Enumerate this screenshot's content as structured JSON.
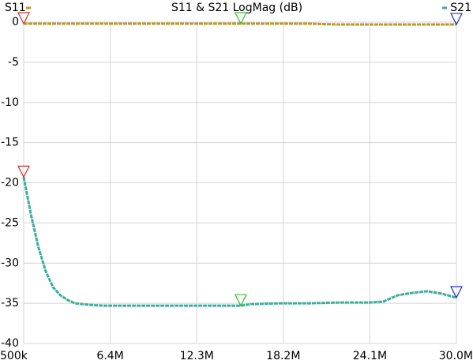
{
  "chart_data": {
    "type": "line",
    "title": "S11 & S21 LogMag (dB)",
    "x": [
      0.5,
      1,
      1.5,
      2,
      2.5,
      3,
      3.5,
      4,
      5,
      6,
      8,
      10,
      12,
      14,
      15.3,
      16,
      18,
      20,
      22,
      24,
      25,
      26,
      27,
      28,
      29,
      30
    ],
    "series": [
      {
        "name": "S11",
        "color": "#b89c2c",
        "values": [
          -0.2,
          -0.2,
          -0.2,
          -0.2,
          -0.2,
          -0.2,
          -0.2,
          -0.2,
          -0.2,
          -0.2,
          -0.2,
          -0.2,
          -0.2,
          -0.2,
          -0.2,
          -0.2,
          -0.2,
          -0.2,
          -0.3,
          -0.3,
          -0.3,
          -0.3,
          -0.3,
          -0.3,
          -0.3,
          -0.3
        ]
      },
      {
        "name": "S21",
        "color": "#3fae9c",
        "values": [
          -19.3,
          -24,
          -28,
          -31,
          -33,
          -34,
          -34.6,
          -35,
          -35.2,
          -35.3,
          -35.3,
          -35.3,
          -35.3,
          -35.3,
          -35.3,
          -35.1,
          -35.0,
          -35.0,
          -34.9,
          -34.9,
          -34.8,
          -34.0,
          -33.7,
          -33.5,
          -33.8,
          -34.3
        ]
      }
    ],
    "xlim": [
      0.5,
      30
    ],
    "xticks": [
      {
        "value": 0.5,
        "label": "500k"
      },
      {
        "value": 6.4,
        "label": "6.4M"
      },
      {
        "value": 12.3,
        "label": "12.3M"
      },
      {
        "value": 18.2,
        "label": "18.2M"
      },
      {
        "value": 24.1,
        "label": "24.1M"
      },
      {
        "value": 30,
        "label": "30.0M"
      }
    ],
    "ylim": [
      -40,
      0
    ],
    "yticks": [
      0,
      -5,
      -10,
      -15,
      -20,
      -25,
      -30,
      -35,
      -40
    ],
    "grid": true
  }
}
